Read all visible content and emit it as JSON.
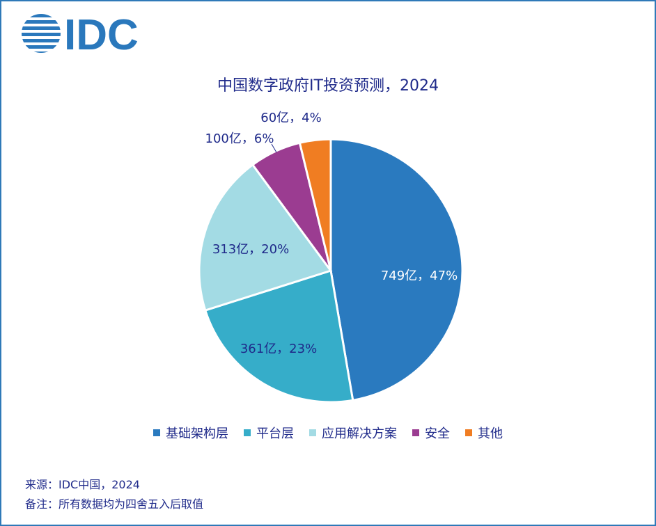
{
  "logo": {
    "text": "IDC",
    "color": "#2a78bc"
  },
  "chart_data": {
    "type": "pie",
    "title": "中国数字政府IT投资预测，2024",
    "categories": [
      "基础架构层",
      "平台层",
      "应用解决方案",
      "安全",
      "其他"
    ],
    "values": [
      749,
      361,
      313,
      100,
      60
    ],
    "percents": [
      47,
      23,
      20,
      6,
      4
    ],
    "labels": [
      "749亿，47%",
      "361亿，23%",
      "313亿，20%",
      "100亿，6%",
      "60亿，4%"
    ],
    "colors": [
      "#2a7abf",
      "#36adc9",
      "#a3dbe4",
      "#9b3c91",
      "#f07d22"
    ],
    "legend_position": "bottom"
  },
  "footnotes": {
    "source": "来源：IDC中国，2024",
    "note": "备注：所有数据均为四舍五入后取值"
  }
}
